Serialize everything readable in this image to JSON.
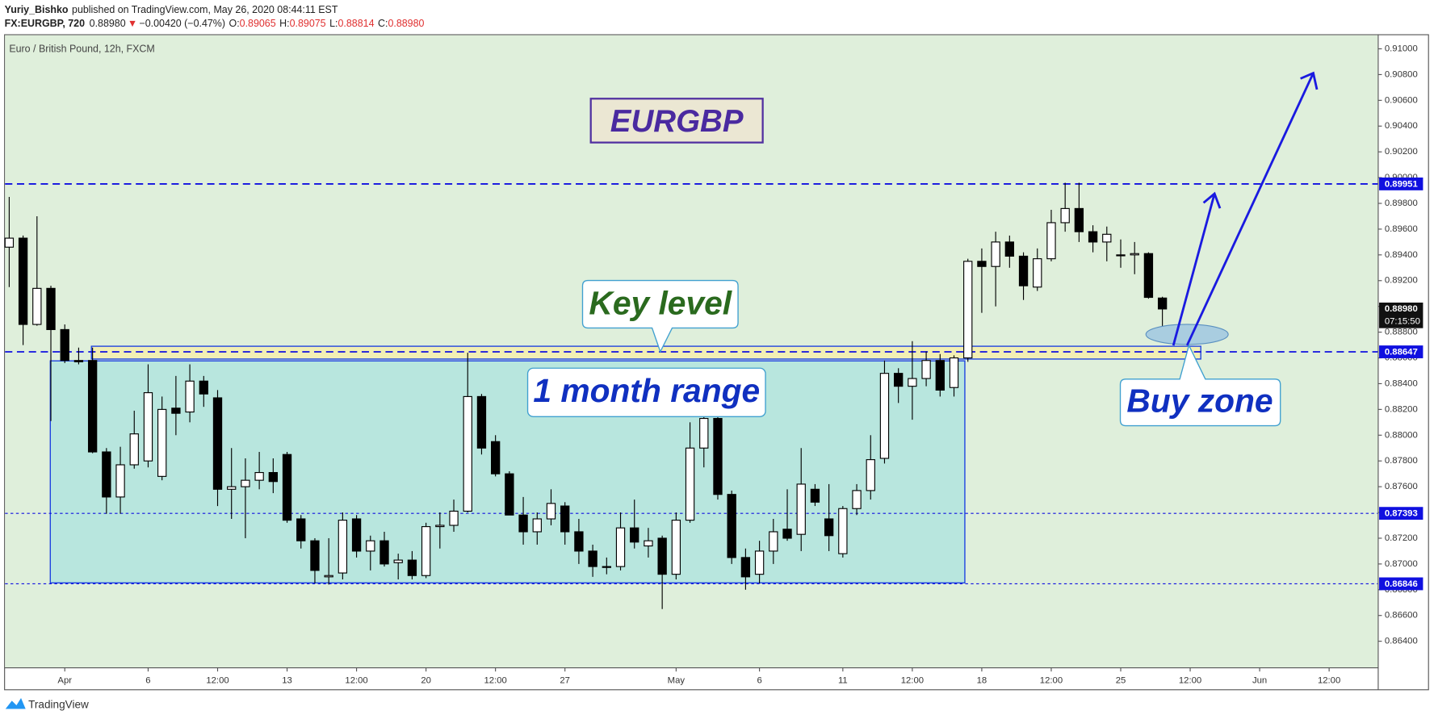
{
  "header": {
    "author": "Yuriy_Bishko",
    "published": "published on TradingView.com, May 26, 2020 08:44:11 EST",
    "symbol": "FX:EURGBP, 720",
    "last": "0.88980",
    "change": "−0.00420 (−0.47%)",
    "o_label": "O:",
    "o": "0.89065",
    "h_label": "H:",
    "h": "0.89075",
    "l_label": "L:",
    "l": "0.88814",
    "c_label": "C:",
    "c": "0.88980"
  },
  "footer": {
    "brand": "TradingView"
  },
  "chart_data": {
    "type": "candlestick",
    "title": "Euro / British Pound, 12h, FXCM",
    "up_color": "#ffffff",
    "down_color": "#000000",
    "open": [
      0.8946,
      0.8953,
      0.8886,
      0.8914,
      0.8882,
      0.8858,
      0.8858,
      0.8787,
      0.8752,
      0.8777,
      0.878,
      0.8768,
      0.8821,
      0.8818,
      0.8842,
      0.8829,
      0.8758,
      0.876,
      0.8765,
      0.8771,
      0.8785,
      0.8735,
      0.8718,
      0.869,
      0.8693,
      0.8735,
      0.871,
      0.8718,
      0.8701,
      0.8703,
      0.8691,
      0.8729,
      0.873,
      0.8741,
      0.883,
      0.8795,
      0.877,
      0.8738,
      0.8725,
      0.8735,
      0.8745,
      0.8725,
      0.871,
      0.8698,
      0.8698,
      0.8728,
      0.8714,
      0.872,
      0.8692,
      0.8734,
      0.879,
      0.8813,
      0.8754,
      0.8705,
      0.8692,
      0.871,
      0.8727,
      0.8723,
      0.8758,
      0.8735,
      0.8708,
      0.8743,
      0.8757,
      0.8782,
      0.8848,
      0.8838,
      0.8844,
      0.8858,
      0.8837,
      0.886,
      0.8935,
      0.8931,
      0.895,
      0.8939,
      0.8915,
      0.8937,
      0.8965,
      0.8976,
      0.8958,
      0.895,
      0.894,
      0.894,
      0.8941,
      0.89065
    ],
    "high": [
      0.8985,
      0.8955,
      0.897,
      0.8916,
      0.8886,
      0.8868,
      0.8868,
      0.879,
      0.8791,
      0.8819,
      0.8855,
      0.883,
      0.8846,
      0.8855,
      0.8846,
      0.8835,
      0.879,
      0.8782,
      0.8787,
      0.8782,
      0.8787,
      0.8738,
      0.872,
      0.872,
      0.874,
      0.8738,
      0.8722,
      0.8725,
      0.8708,
      0.871,
      0.8732,
      0.874,
      0.875,
      0.8864,
      0.8832,
      0.88,
      0.8772,
      0.8752,
      0.874,
      0.8758,
      0.8748,
      0.8735,
      0.8715,
      0.8705,
      0.874,
      0.875,
      0.8728,
      0.8722,
      0.874,
      0.881,
      0.8815,
      0.8822,
      0.8757,
      0.8712,
      0.8718,
      0.8735,
      0.8758,
      0.879,
      0.8762,
      0.8762,
      0.8745,
      0.8762,
      0.88,
      0.8858,
      0.8852,
      0.8873,
      0.8865,
      0.8863,
      0.8862,
      0.8937,
      0.8945,
      0.8958,
      0.8955,
      0.8942,
      0.8945,
      0.8975,
      0.8996,
      0.8996,
      0.8963,
      0.8962,
      0.8952,
      0.895,
      0.8942,
      0.89075
    ],
    "low": [
      0.8915,
      0.887,
      0.8885,
      0.8811,
      0.8856,
      0.8855,
      0.8786,
      0.8739,
      0.8739,
      0.8774,
      0.8775,
      0.8765,
      0.88,
      0.881,
      0.8822,
      0.8745,
      0.8735,
      0.872,
      0.8758,
      0.8755,
      0.8732,
      0.8712,
      0.8685,
      0.8684,
      0.8688,
      0.8705,
      0.8695,
      0.8698,
      0.8688,
      0.8688,
      0.8689,
      0.8712,
      0.8725,
      0.874,
      0.8785,
      0.8768,
      0.8738,
      0.8715,
      0.8715,
      0.873,
      0.8715,
      0.87,
      0.869,
      0.8692,
      0.8695,
      0.8712,
      0.8705,
      0.8665,
      0.8688,
      0.8732,
      0.8775,
      0.875,
      0.87,
      0.868,
      0.8685,
      0.87,
      0.8718,
      0.871,
      0.8745,
      0.871,
      0.8705,
      0.8738,
      0.875,
      0.8778,
      0.8825,
      0.8812,
      0.8838,
      0.883,
      0.883,
      0.8857,
      0.8895,
      0.89,
      0.893,
      0.8905,
      0.8912,
      0.8935,
      0.8958,
      0.895,
      0.8942,
      0.8935,
      0.893,
      0.8925,
      0.8906,
      0.88814
    ],
    "close": [
      0.8953,
      0.8886,
      0.8914,
      0.8882,
      0.8858,
      0.8857,
      0.8787,
      0.8752,
      0.8777,
      0.8801,
      0.8833,
      0.882,
      0.8817,
      0.8842,
      0.8832,
      0.8758,
      0.876,
      0.8765,
      0.8771,
      0.8764,
      0.8734,
      0.8718,
      0.8695,
      0.8691,
      0.8734,
      0.871,
      0.8718,
      0.87,
      0.8703,
      0.8691,
      0.8729,
      0.873,
      0.8741,
      0.883,
      0.879,
      0.877,
      0.8738,
      0.8725,
      0.8735,
      0.8747,
      0.8725,
      0.871,
      0.8698,
      0.8698,
      0.8728,
      0.8717,
      0.8718,
      0.8692,
      0.8734,
      0.879,
      0.8813,
      0.8754,
      0.8705,
      0.869,
      0.871,
      0.8725,
      0.872,
      0.8762,
      0.8748,
      0.8722,
      0.8743,
      0.8757,
      0.8781,
      0.8848,
      0.8838,
      0.8844,
      0.8858,
      0.8835,
      0.886,
      0.8935,
      0.8931,
      0.895,
      0.8939,
      0.8916,
      0.8937,
      0.8965,
      0.8976,
      0.8958,
      0.895,
      0.8956,
      0.894,
      0.8941,
      0.8907,
      0.8898
    ],
    "xlim": [
      -0.3,
      98.5
    ],
    "xticks": [
      {
        "value": 4,
        "label": "Apr"
      },
      {
        "value": 10,
        "label": "6"
      },
      {
        "value": 15,
        "label": "12:00"
      },
      {
        "value": 20,
        "label": "13"
      },
      {
        "value": 25,
        "label": "12:00"
      },
      {
        "value": 30,
        "label": "20"
      },
      {
        "value": 35,
        "label": "12:00"
      },
      {
        "value": 40,
        "label": "27"
      },
      {
        "value": 48,
        "label": "May"
      },
      {
        "value": 54,
        "label": "6"
      },
      {
        "value": 60,
        "label": "11"
      },
      {
        "value": 65,
        "label": "12:00"
      },
      {
        "value": 70,
        "label": "18"
      },
      {
        "value": 75,
        "label": "12:00"
      },
      {
        "value": 80,
        "label": "25"
      },
      {
        "value": 85,
        "label": "12:00"
      },
      {
        "value": 90,
        "label": "Jun"
      },
      {
        "value": 95,
        "label": "12:00"
      }
    ],
    "ylim": [
      0.86197,
      0.91106
    ],
    "yticks": [
      {
        "value": 0.864,
        "label": "0.86400"
      },
      {
        "value": 0.866,
        "label": "0.86600"
      },
      {
        "value": 0.868,
        "label": "0.86800"
      },
      {
        "value": 0.87,
        "label": "0.87000"
      },
      {
        "value": 0.872,
        "label": "0.87200"
      },
      {
        "value": 0.874,
        "label": "0.87400"
      },
      {
        "value": 0.876,
        "label": "0.87600"
      },
      {
        "value": 0.878,
        "label": "0.87800"
      },
      {
        "value": 0.88,
        "label": "0.88000"
      },
      {
        "value": 0.882,
        "label": "0.88200"
      },
      {
        "value": 0.884,
        "label": "0.88400"
      },
      {
        "value": 0.886,
        "label": "0.88600"
      },
      {
        "value": 0.888,
        "label": "0.88800"
      },
      {
        "value": 0.89,
        "label": "0.89000"
      },
      {
        "value": 0.892,
        "label": "0.89200"
      },
      {
        "value": 0.894,
        "label": "0.89400"
      },
      {
        "value": 0.896,
        "label": "0.89600"
      },
      {
        "value": 0.898,
        "label": "0.89800"
      },
      {
        "value": 0.9,
        "label": "0.90000"
      },
      {
        "value": 0.902,
        "label": "0.90200"
      },
      {
        "value": 0.904,
        "label": "0.90400"
      },
      {
        "value": 0.906,
        "label": "0.90600"
      },
      {
        "value": 0.908,
        "label": "0.90800"
      },
      {
        "value": 0.91,
        "label": "0.91000"
      }
    ],
    "levels": [
      {
        "value": 0.89951,
        "style": "dashed"
      },
      {
        "value": 0.88647,
        "style": "dashed"
      },
      {
        "value": 0.87393,
        "style": "dotted"
      },
      {
        "value": 0.86846,
        "style": "dotted"
      }
    ],
    "level_color": "#1010e0",
    "current": {
      "value": 0.8898,
      "label": "0.88980",
      "countdown": "07:15:50"
    },
    "annotations": {
      "symbol": "EURGBP",
      "key_level": "Key level",
      "range": "1 month range",
      "buy_zone": "Buy zone"
    }
  }
}
